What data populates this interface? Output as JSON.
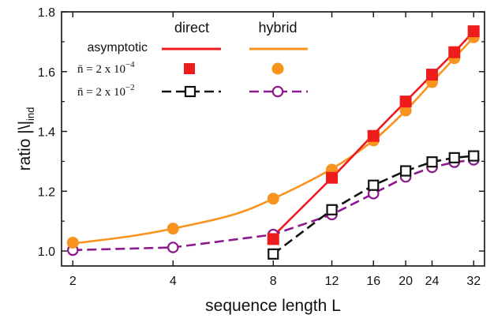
{
  "chart_data": {
    "type": "line",
    "xlabel": "sequence length L",
    "ylabel_main": "ratio |\\|",
    "ylabel_sub": "ind",
    "x_scale": "log2",
    "xlim": [
      1.85,
      34.5
    ],
    "ylim": [
      0.95,
      1.8
    ],
    "x_ticks": [
      2,
      4,
      8,
      12,
      16,
      20,
      24,
      32
    ],
    "y_ticks": [
      1.0,
      1.2,
      1.4,
      1.6,
      1.8
    ],
    "y_tick_labels": [
      "1.0",
      "1.2",
      "1.4",
      "1.6",
      "1.8"
    ],
    "legend": {
      "col_direct": "direct",
      "col_hybrid": "hybrid",
      "row_asymptotic": "asymptotic",
      "row_small": "n̄ = 2 x 10",
      "row_small_exp": "−4",
      "row_large": "n̄ = 2 x 10",
      "row_large_exp": "−2"
    },
    "colors": {
      "direct": "#ee1c1c",
      "hybrid": "#f7931e",
      "direct_dashed": "#111111",
      "hybrid_dashed": "#8b1a8c"
    },
    "series": [
      {
        "name": "asymptotic direct",
        "kind": "line",
        "style": "solid",
        "color": "#ee1c1c",
        "x": [
          8,
          12,
          16,
          20,
          24,
          28,
          32
        ],
        "y": [
          1.05,
          1.245,
          1.39,
          1.5,
          1.59,
          1.665,
          1.735
        ]
      },
      {
        "name": "asymptotic hybrid",
        "kind": "line",
        "style": "solid",
        "color": "#f7931e",
        "x": [
          2,
          3,
          4,
          6,
          8,
          12,
          16,
          20,
          24,
          28,
          32
        ],
        "y": [
          1.025,
          1.05,
          1.075,
          1.12,
          1.175,
          1.275,
          1.37,
          1.47,
          1.565,
          1.645,
          1.715
        ]
      },
      {
        "name": "n̄ = 2 x 10^-4 direct",
        "kind": "marker",
        "marker": "filled-square",
        "color": "#ee1c1c",
        "x": [
          8,
          12,
          16,
          20,
          24,
          28,
          32
        ],
        "y": [
          1.04,
          1.245,
          1.385,
          1.5,
          1.59,
          1.665,
          1.735
        ]
      },
      {
        "name": "n̄ = 2 x 10^-4 hybrid",
        "kind": "marker",
        "marker": "filled-circle",
        "color": "#f7931e",
        "x": [
          2,
          4,
          8,
          12,
          16,
          20,
          24,
          28,
          32
        ],
        "y": [
          1.028,
          1.075,
          1.175,
          1.272,
          1.37,
          1.47,
          1.565,
          1.645,
          1.715
        ]
      },
      {
        "name": "n̄ = 2 x 10^-2 direct",
        "kind": "line-marker",
        "style": "dashed",
        "marker": "open-square",
        "color": "#111111",
        "x": [
          8,
          12,
          16,
          20,
          24,
          28,
          32
        ],
        "y": [
          0.99,
          1.138,
          1.22,
          1.268,
          1.298,
          1.312,
          1.318
        ]
      },
      {
        "name": "n̄ = 2 x 10^-2 hybrid",
        "kind": "line-marker",
        "style": "dashed",
        "marker": "open-circle",
        "color": "#8b1a8c",
        "x": [
          2,
          4,
          8,
          12,
          16,
          20,
          24,
          28,
          32
        ],
        "y": [
          1.003,
          1.012,
          1.055,
          1.122,
          1.192,
          1.248,
          1.28,
          1.297,
          1.305
        ]
      }
    ]
  }
}
